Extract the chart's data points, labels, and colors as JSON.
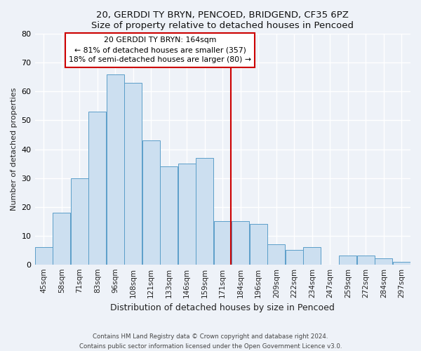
{
  "title": "20, GERDDI TY BRYN, PENCOED, BRIDGEND, CF35 6PZ",
  "subtitle": "Size of property relative to detached houses in Pencoed",
  "xlabel": "Distribution of detached houses by size in Pencoed",
  "ylabel": "Number of detached properties",
  "bar_labels": [
    "45sqm",
    "58sqm",
    "71sqm",
    "83sqm",
    "96sqm",
    "108sqm",
    "121sqm",
    "133sqm",
    "146sqm",
    "159sqm",
    "171sqm",
    "184sqm",
    "196sqm",
    "209sqm",
    "222sqm",
    "234sqm",
    "247sqm",
    "259sqm",
    "272sqm",
    "284sqm",
    "297sqm"
  ],
  "bar_values": [
    6,
    18,
    30,
    53,
    66,
    63,
    43,
    34,
    35,
    37,
    15,
    15,
    14,
    7,
    5,
    6,
    0,
    3,
    3,
    2,
    1
  ],
  "bar_color": "#ccdff0",
  "bar_edgecolor": "#5b9ec9",
  "vline_color": "#cc0000",
  "vline_x_index": 10.46,
  "annotation_box_text": "20 GERDDI TY BRYN: 164sqm\n← 81% of detached houses are smaller (357)\n18% of semi-detached houses are larger (80) →",
  "annotation_box_color": "#ffffff",
  "annotation_box_edgecolor": "#cc0000",
  "ylim": [
    0,
    80
  ],
  "background_color": "#eef2f8",
  "grid_color": "#ffffff",
  "footer_line1": "Contains HM Land Registry data © Crown copyright and database right 2024.",
  "footer_line2": "Contains public sector information licensed under the Open Government Licence v3.0."
}
